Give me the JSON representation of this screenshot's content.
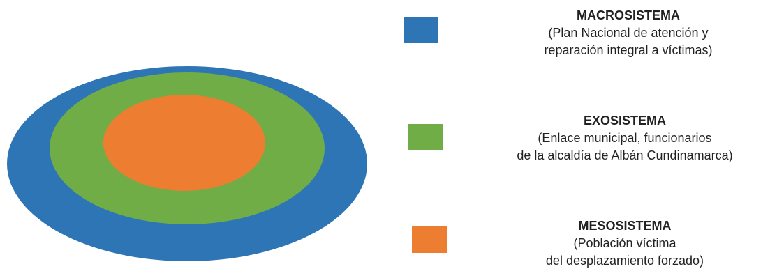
{
  "colors": {
    "macro": "#2E75B6",
    "exo": "#70AD47",
    "meso": "#ED7D31"
  },
  "legend": {
    "macro": {
      "title": "MACROSISTEMA",
      "description": "(Plan Nacional de atención y\nreparación integral a víctimas)"
    },
    "exo": {
      "title": "EXOSISTEMA",
      "description": "(Enlace municipal, funcionarios\nde la alcaldía de Albán Cundinamarca)"
    },
    "meso": {
      "title": "MESOSISTEMA",
      "description": "(Población víctima\ndel desplazamiento forzado)"
    }
  }
}
